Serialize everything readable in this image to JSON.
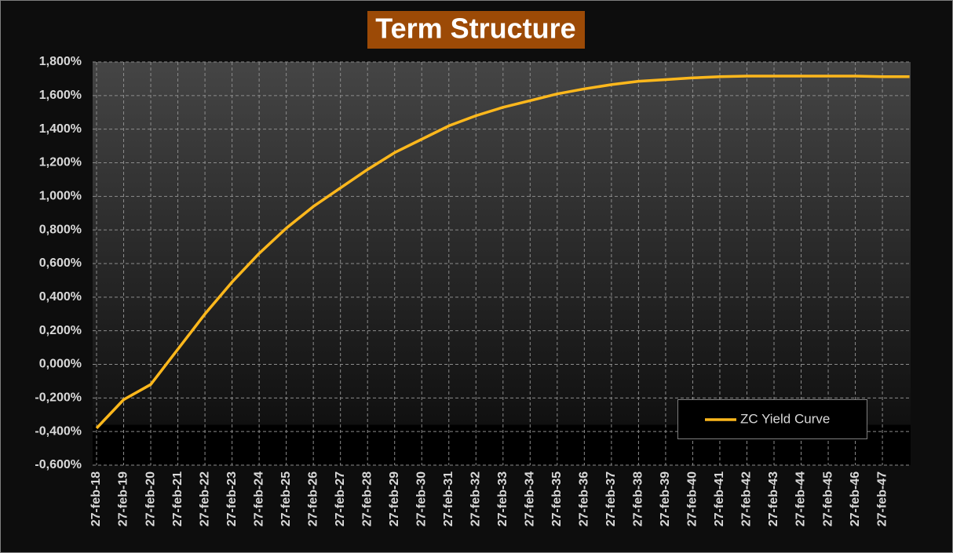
{
  "chart_data": {
    "type": "line",
    "title": "Term Structure",
    "categories": [
      "27-feb-18",
      "27-feb-19",
      "27-feb-20",
      "27-feb-21",
      "27-feb-22",
      "27-feb-23",
      "27-feb-24",
      "27-feb-25",
      "27-feb-26",
      "27-feb-27",
      "27-feb-28",
      "27-feb-29",
      "27-feb-30",
      "27-feb-31",
      "27-feb-32",
      "27-feb-33",
      "27-feb-34",
      "27-feb-35",
      "27-feb-36",
      "27-feb-37",
      "27-feb-38",
      "27-feb-39",
      "27-feb-40",
      "27-feb-41",
      "27-feb-42",
      "27-feb-43",
      "27-feb-44",
      "27-feb-45",
      "27-feb-46",
      "27-feb-47",
      null
    ],
    "series": [
      {
        "name": "ZC Yield Curve",
        "color": "#ffb81c",
        "values": [
          -0.38,
          -0.21,
          -0.12,
          0.09,
          0.3,
          0.49,
          0.66,
          0.81,
          0.94,
          1.05,
          1.16,
          1.26,
          1.34,
          1.42,
          1.48,
          1.53,
          1.57,
          1.61,
          1.64,
          1.665,
          1.685,
          1.695,
          1.705,
          1.712,
          1.716,
          1.716,
          1.716,
          1.716,
          1.716,
          1.712,
          1.712
        ]
      }
    ],
    "ylim": [
      -0.6,
      1.8
    ],
    "yticks": [
      {
        "value": -0.6,
        "label": "-0,600%"
      },
      {
        "value": -0.4,
        "label": "-0,400%"
      },
      {
        "value": -0.2,
        "label": "-0,200%"
      },
      {
        "value": 0,
        "label": "0,000%"
      },
      {
        "value": 0.2,
        "label": "0,200%"
      },
      {
        "value": 0.4,
        "label": "0,400%"
      },
      {
        "value": 0.6,
        "label": "0,600%"
      },
      {
        "value": 0.8,
        "label": "0,800%"
      },
      {
        "value": 1.0,
        "label": "1,000%"
      },
      {
        "value": 1.2,
        "label": "1,200%"
      },
      {
        "value": 1.4,
        "label": "1,400%"
      },
      {
        "value": 1.6,
        "label": "1,600%"
      },
      {
        "value": 1.8,
        "label": "1,800%"
      }
    ],
    "grid": true
  }
}
